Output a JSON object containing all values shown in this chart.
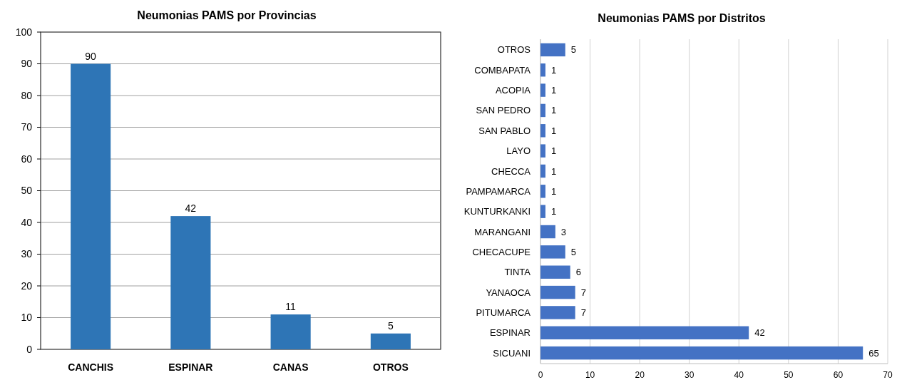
{
  "chart_data": [
    {
      "type": "bar",
      "title": "Neumonias PAMS por Provincias",
      "categories": [
        "CANCHIS",
        "ESPINAR",
        "CANAS",
        "OTROS"
      ],
      "values": [
        90,
        42,
        11,
        5
      ],
      "color": "#2e75b6",
      "ylim": [
        0,
        100
      ],
      "yticks": [
        0,
        10,
        20,
        30,
        40,
        50,
        60,
        70,
        80,
        90,
        100
      ],
      "grid": "y",
      "data_labels": true
    },
    {
      "type": "bar",
      "title": "Neumonias PAMS por Distritos",
      "orientation": "horizontal",
      "categories": [
        "OTROS",
        "COMBAPATA",
        "ACOPIA",
        "SAN PEDRO",
        "SAN PABLO",
        "LAYO",
        "CHECCA",
        "PAMPAMARCA",
        "KUNTURKANKI",
        "MARANGANI",
        "CHECACUPE",
        "TINTA",
        "YANAOCA",
        "PITUMARCA",
        "ESPINAR",
        "SICUANI"
      ],
      "values": [
        5,
        1,
        1,
        1,
        1,
        1,
        1,
        1,
        1,
        3,
        5,
        6,
        7,
        7,
        42,
        65
      ],
      "color": "#4472c4",
      "xlim": [
        0,
        70
      ],
      "xticks": [
        0,
        10,
        20,
        30,
        40,
        50,
        60,
        70
      ],
      "grid": "x",
      "data_labels": true
    }
  ]
}
